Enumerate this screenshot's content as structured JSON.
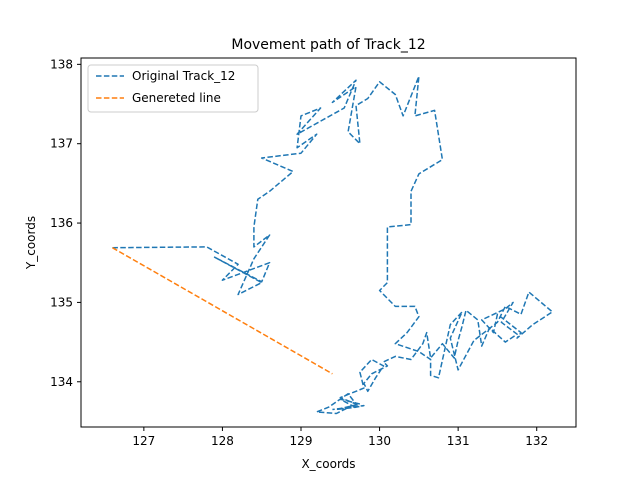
{
  "chart_data": {
    "type": "line",
    "title": "Movement path of Track_12",
    "xlabel": "X_coords",
    "ylabel": "Y_coords",
    "xlim": [
      126.2,
      132.5
    ],
    "ylim": [
      133.43,
      138.08
    ],
    "xticks": [
      127,
      128,
      129,
      130,
      131,
      132
    ],
    "yticks": [
      134,
      135,
      136,
      137,
      138
    ],
    "grid": false,
    "legend": "upper-left",
    "series": [
      {
        "name": "Original Track_12",
        "color": "#1f77b4",
        "style": "dashed",
        "x": [
          126.6,
          127.8,
          128.2,
          128.0,
          128.6,
          128.5,
          127.9,
          128.5,
          128.2,
          128.4,
          128.6,
          128.4,
          128.4,
          128.45,
          128.6,
          128.9,
          128.5,
          129.0,
          129.2,
          128.95,
          129.0,
          129.25,
          128.95,
          129.55,
          129.7,
          129.4,
          129.7,
          129.6,
          129.75,
          129.7,
          129.85,
          130.0,
          130.2,
          130.3,
          130.5,
          130.45,
          130.7,
          130.8,
          130.5,
          130.4,
          130.4,
          130.1,
          130.1,
          130.0,
          130.2,
          130.45,
          130.5,
          130.35,
          130.2,
          130.5,
          130.65,
          130.65,
          130.75,
          130.9,
          131.05,
          130.9,
          130.95,
          131.0,
          131.2,
          131.5,
          131.6,
          131.8,
          131.9,
          132.2,
          131.95,
          131.75,
          131.8,
          131.5,
          131.45,
          131.3,
          131.6,
          131.7,
          131.55,
          131.75,
          131.6,
          131.4,
          131.3,
          131.25,
          131.1,
          131.05,
          131.0,
          130.95,
          130.8,
          130.65,
          130.6,
          130.55,
          130.4,
          130.2,
          130.05,
          130.1,
          129.9,
          129.8,
          129.85,
          129.95,
          130.05,
          129.9,
          129.75,
          129.8,
          129.5,
          129.7,
          129.6,
          129.35,
          129.2,
          129.45,
          129.65,
          129.5,
          129.75,
          129.45,
          129.7,
          129.8,
          129.4
        ],
        "y": [
          135.69,
          135.7,
          135.48,
          135.28,
          135.5,
          135.26,
          135.57,
          135.25,
          135.1,
          135.55,
          135.85,
          135.7,
          135.95,
          136.3,
          136.4,
          136.65,
          136.82,
          136.88,
          137.12,
          136.95,
          137.35,
          137.45,
          137.12,
          137.45,
          137.8,
          137.52,
          137.72,
          137.15,
          137.0,
          137.48,
          137.57,
          137.78,
          137.62,
          137.35,
          137.85,
          137.35,
          137.42,
          136.8,
          136.62,
          136.4,
          135.98,
          135.95,
          135.25,
          135.15,
          134.95,
          134.95,
          134.82,
          134.62,
          134.48,
          134.38,
          134.28,
          134.08,
          134.05,
          134.72,
          134.88,
          134.55,
          134.35,
          134.15,
          134.52,
          134.75,
          134.95,
          134.85,
          135.13,
          134.88,
          134.72,
          134.55,
          134.62,
          134.85,
          134.62,
          134.78,
          134.92,
          135.0,
          134.75,
          134.6,
          134.5,
          134.68,
          134.45,
          134.78,
          134.9,
          134.7,
          134.52,
          134.3,
          134.48,
          134.3,
          134.62,
          134.48,
          134.28,
          134.32,
          134.25,
          134.2,
          134.1,
          133.98,
          133.88,
          134.05,
          134.2,
          134.28,
          134.12,
          133.92,
          133.8,
          133.72,
          133.85,
          133.68,
          133.62,
          133.6,
          133.7,
          133.78,
          133.72,
          133.65,
          133.68,
          133.7,
          133.65
        ]
      },
      {
        "name": "Genereted line",
        "color": "#ff7f0e",
        "style": "dashed",
        "x": [
          126.6,
          129.4
        ],
        "y": [
          135.69,
          134.1
        ]
      }
    ]
  }
}
